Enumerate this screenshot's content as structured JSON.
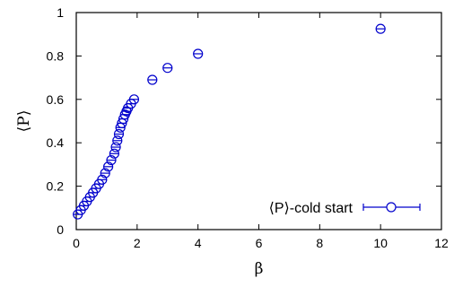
{
  "chart_data": {
    "type": "scatter",
    "xlabel": "β",
    "ylabel": "⟨P⟩",
    "xlim": [
      0,
      12
    ],
    "ylim": [
      0,
      1
    ],
    "x_ticks": [
      "0",
      "2",
      "4",
      "6",
      "8",
      "10",
      "12"
    ],
    "y_ticks": [
      "0",
      "0.2",
      "0.4",
      "0.6",
      "0.8",
      "1"
    ],
    "grid": false,
    "legend_position": "bottom-right",
    "series": [
      {
        "name": "⟨P⟩-cold start",
        "color": "#0000cc",
        "marker": "open-circle-with-errorbar",
        "points": [
          {
            "x": 0.05,
            "y": 0.07
          },
          {
            "x": 0.15,
            "y": 0.09
          },
          {
            "x": 0.25,
            "y": 0.11
          },
          {
            "x": 0.35,
            "y": 0.13
          },
          {
            "x": 0.45,
            "y": 0.15
          },
          {
            "x": 0.55,
            "y": 0.17
          },
          {
            "x": 0.65,
            "y": 0.19
          },
          {
            "x": 0.75,
            "y": 0.21
          },
          {
            "x": 0.85,
            "y": 0.23
          },
          {
            "x": 0.95,
            "y": 0.26
          },
          {
            "x": 1.05,
            "y": 0.29
          },
          {
            "x": 1.15,
            "y": 0.32
          },
          {
            "x": 1.25,
            "y": 0.35
          },
          {
            "x": 1.3,
            "y": 0.38
          },
          {
            "x": 1.35,
            "y": 0.41
          },
          {
            "x": 1.4,
            "y": 0.44
          },
          {
            "x": 1.45,
            "y": 0.47
          },
          {
            "x": 1.5,
            "y": 0.49
          },
          {
            "x": 1.55,
            "y": 0.51
          },
          {
            "x": 1.6,
            "y": 0.53
          },
          {
            "x": 1.65,
            "y": 0.545
          },
          {
            "x": 1.7,
            "y": 0.56
          },
          {
            "x": 1.8,
            "y": 0.58
          },
          {
            "x": 1.9,
            "y": 0.6
          },
          {
            "x": 2.5,
            "y": 0.69
          },
          {
            "x": 3.0,
            "y": 0.745
          },
          {
            "x": 4.0,
            "y": 0.81
          },
          {
            "x": 10.0,
            "y": 0.925
          }
        ]
      }
    ]
  }
}
